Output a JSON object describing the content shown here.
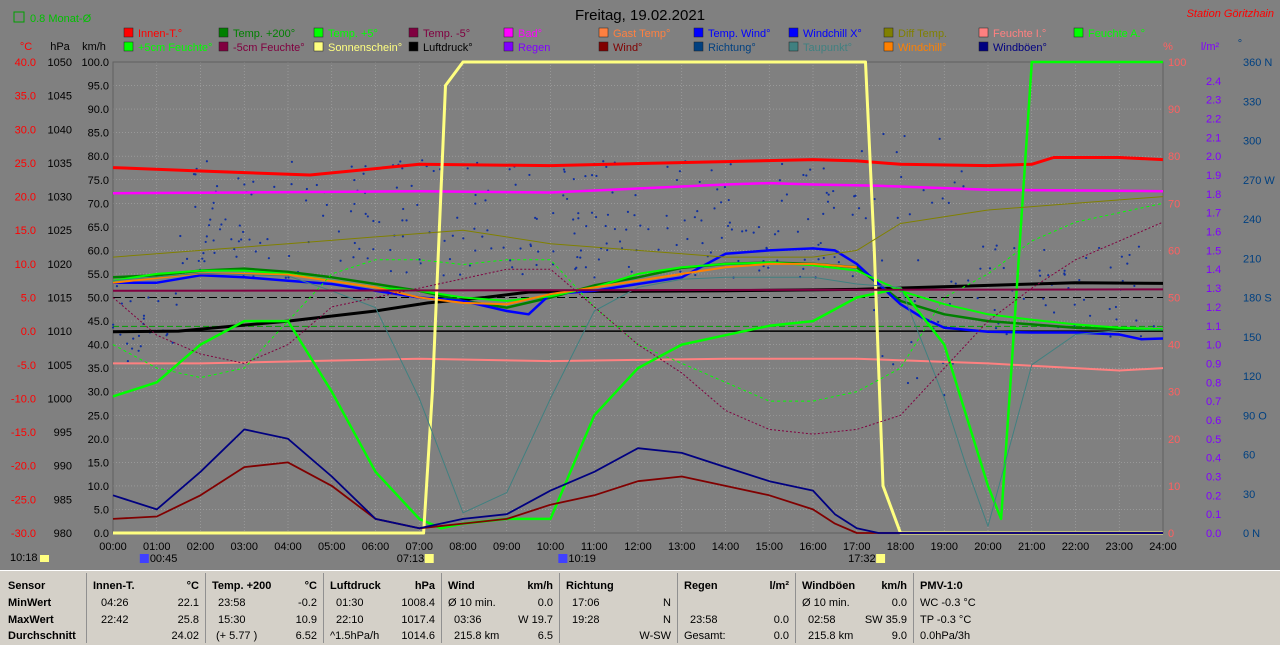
{
  "title": "Freitag, 19.02.2021",
  "station": "Station Göritzhain",
  "monat_label": "0.8 Monat-Ø",
  "axes": {
    "celsius_unit": "°C",
    "hpa_unit": "hPa",
    "kmh_unit": "km/h",
    "percent_unit": "%",
    "lm2_unit": "l/m²",
    "deg_unit": "°",
    "celsius_ticks": [
      "40.0",
      "35.0",
      "30.0",
      "25.0",
      "20.0",
      "15.0",
      "10.0",
      "5.0",
      "0.0",
      "-5.0",
      "-10.0",
      "-15.0",
      "-20.0",
      "-25.0",
      "-30.0"
    ],
    "hpa_ticks": [
      "1050",
      "1045",
      "1040",
      "1035",
      "1030",
      "1025",
      "1020",
      "1015",
      "1010",
      "1005",
      "1000",
      "995",
      "990",
      "985",
      "980"
    ],
    "kmh_ticks": [
      "100.0",
      "95.0",
      "90.0",
      "85.0",
      "80.0",
      "75.0",
      "70.0",
      "65.0",
      "60.0",
      "55.0",
      "50.0",
      "45.0",
      "40.0",
      "35.0",
      "30.0",
      "25.0",
      "20.0",
      "15.0",
      "10.0",
      "5.0",
      "0.0"
    ],
    "percent_ticks": [
      "100",
      "90",
      "80",
      "70",
      "60",
      "50",
      "40",
      "30",
      "20",
      "10",
      "0"
    ],
    "lm2_ticks": [
      "2.4",
      "2.3",
      "2.2",
      "2.1",
      "2.0",
      "1.9",
      "1.8",
      "1.7",
      "1.6",
      "1.5",
      "1.4",
      "1.3",
      "1.2",
      "1.1",
      "1.0",
      "0.9",
      "0.8",
      "0.7",
      "0.6",
      "0.5",
      "0.4",
      "0.3",
      "0.2",
      "0.1",
      "0.0"
    ],
    "deg_ticks": [
      "360 N",
      "330",
      "300",
      "270 W",
      "240",
      "210",
      "180 S",
      "150",
      "120",
      "90 O",
      "60",
      "30",
      "0 N"
    ],
    "time_ticks": [
      "00:00",
      "01:00",
      "02:00",
      "03:00",
      "04:00",
      "05:00",
      "06:00",
      "07:00",
      "08:00",
      "09:00",
      "10:00",
      "11:00",
      "12:00",
      "13:00",
      "14:00",
      "15:00",
      "16:00",
      "17:00",
      "18:00",
      "19:00",
      "20:00",
      "21:00",
      "22:00",
      "23:00",
      "24:00"
    ]
  },
  "markers": {
    "left_time": "10:18",
    "moonrise": "00:45",
    "sunrise": "07:13",
    "moonset": "10:19",
    "sunset": "17:32"
  },
  "legend": [
    {
      "label": "Innen-T.°",
      "color": "#ff0000"
    },
    {
      "label": "Temp. +200°",
      "color": "#008000"
    },
    {
      "label": "Temp. +5°",
      "color": "#00ff00"
    },
    {
      "label": "Temp. -5°",
      "color": "#800040"
    },
    {
      "label": "Bad°",
      "color": "#ff00ff"
    },
    {
      "label": "Gast Temp°",
      "color": "#ff8040"
    },
    {
      "label": "Temp. Wind°",
      "color": "#0000ff"
    },
    {
      "label": "Windchill X°",
      "color": "#0000ff"
    },
    {
      "label": "Diff Temp.",
      "color": "#808000"
    },
    {
      "label": "Feuchte I.°",
      "color": "#ff8080"
    },
    {
      "label": "Feuchte A.°",
      "color": "#00ff00"
    },
    {
      "label": "+5cm Feuchte°",
      "color": "#00ff00"
    },
    {
      "label": "-5cm Feuchte°",
      "color": "#800040"
    },
    {
      "label": "Sonnenschein°",
      "color": "#ffff80"
    },
    {
      "label": "Luftdruck°",
      "color": "#000000"
    },
    {
      "label": "Regen",
      "color": "#8000ff"
    },
    {
      "label": "Wind°",
      "color": "#800000"
    },
    {
      "label": "Richtung°",
      "color": "#004080"
    },
    {
      "label": "Taupunkt°",
      "color": "#408080"
    },
    {
      "label": "Windchill°",
      "color": "#ff8000"
    },
    {
      "label": "Windböen°",
      "color": "#000080"
    }
  ],
  "chart_data": {
    "type": "line",
    "x_unit": "h",
    "xlim": [
      0,
      24
    ],
    "ylim_kmh": [
      0,
      100
    ],
    "series": [
      {
        "name": "Innen-T.°",
        "axis": "celsius",
        "color": "#ff0000",
        "x": [
          0,
          2,
          4.5,
          7,
          10,
          14,
          16,
          17,
          18,
          20,
          21,
          21.5,
          23,
          24
        ],
        "y": [
          24.3,
          23.8,
          23.2,
          24.8,
          24.6,
          25.2,
          25.5,
          25.3,
          24.8,
          24.6,
          24.8,
          25.8,
          25.8,
          25.5
        ]
      },
      {
        "name": "Bad°",
        "axis": "celsius",
        "color": "#ff00ff",
        "x": [
          0,
          3,
          7,
          10,
          12,
          14,
          15,
          16,
          17.5,
          20,
          24
        ],
        "y": [
          20.5,
          20.6,
          20.8,
          20.6,
          21.2,
          21.8,
          22,
          21.8,
          21.6,
          21.0,
          20.8
        ]
      },
      {
        "name": "Luftdruck°",
        "axis": "hpa",
        "color": "#000000",
        "x": [
          0,
          1.5,
          4,
          6,
          7.2,
          8.5,
          9.5,
          11,
          14,
          17,
          20,
          22,
          24
        ],
        "y": [
          1009.9,
          1010,
          1011.5,
          1013,
          1014.2,
          1015,
          1015.8,
          1015.9,
          1016,
          1016.2,
          1016.8,
          1017.2,
          1017.1
        ]
      },
      {
        "name": "Feuchte I.°",
        "axis": "percent",
        "color": "#ff8080",
        "x": [
          0,
          2,
          7,
          10,
          14,
          17,
          20,
          22,
          23,
          24
        ],
        "y": [
          36,
          36,
          37,
          36.5,
          37,
          37,
          36,
          35,
          34.5,
          35
        ]
      },
      {
        "name": "Temp. +200°",
        "axis": "celsius",
        "color": "#008000",
        "x": [
          0,
          1,
          2,
          3,
          4,
          5,
          6,
          7,
          8,
          9,
          10,
          11,
          12,
          13,
          14,
          15,
          16,
          17,
          17.5,
          18,
          19,
          20,
          21,
          22,
          23,
          24
        ],
        "y": [
          8.0,
          8.3,
          9.0,
          9.3,
          8.8,
          8.0,
          7.0,
          6.0,
          4.5,
          3.5,
          5.0,
          6.8,
          8.0,
          9.4,
          10.0,
          10.2,
          10.0,
          9.5,
          7.0,
          4.5,
          2.5,
          1.5,
          1.0,
          0.5,
          0.3,
          0.2
        ]
      },
      {
        "name": "Temp. Wind°",
        "axis": "celsius",
        "color": "#0000ff",
        "x": [
          0,
          1,
          2,
          3,
          4,
          5,
          6,
          7,
          8,
          9,
          9.5,
          10,
          11,
          12,
          13,
          14,
          15,
          16,
          16.5,
          17,
          17.5,
          18,
          18.5,
          19,
          20,
          21,
          22,
          23,
          23.5,
          24
        ],
        "y": [
          7.2,
          7.2,
          8.3,
          8.0,
          7.5,
          7.0,
          6.0,
          5.0,
          4.5,
          3.0,
          2.5,
          5.5,
          6.0,
          7.0,
          8.0,
          11.5,
          12.0,
          12.3,
          12.0,
          10.0,
          7.0,
          4.0,
          2.0,
          0.5,
          -0.1,
          -0.2,
          -0.2,
          -0.5,
          -1.2,
          -1.1
        ]
      },
      {
        "name": "Temp. +5°",
        "axis": "celsius",
        "color": "#00ff00",
        "x": [
          0,
          1,
          2,
          3,
          4,
          5,
          6,
          7,
          8,
          9,
          10,
          11,
          12,
          13,
          14,
          15,
          16,
          17,
          18,
          19,
          20,
          21,
          22,
          23,
          24
        ],
        "y": [
          7.5,
          8.5,
          9.0,
          9.0,
          8.5,
          7.5,
          6.5,
          6.0,
          5.0,
          4.5,
          5.2,
          6.5,
          8.5,
          9.5,
          10.0,
          10.2,
          9.8,
          9.0,
          6.0,
          4.0,
          2.5,
          1.7,
          1.0,
          0.5,
          0.3
        ]
      },
      {
        "name": "Windchill°",
        "axis": "celsius",
        "color": "#ff8000",
        "x": [
          0,
          2,
          4,
          6,
          7,
          8,
          9,
          10,
          11,
          12,
          13,
          14,
          15,
          16,
          17
        ],
        "y": [
          7.2,
          8.6,
          8.4,
          6.5,
          5.0,
          4.2,
          4.0,
          5.5,
          6.5,
          7.5,
          8.5,
          9.5,
          10.0,
          10.0,
          9.5
        ]
      },
      {
        "name": "Feuchte A.°",
        "axis": "percent",
        "color": "#00ff00",
        "x": [
          0,
          1,
          2,
          3,
          4,
          5,
          6,
          7,
          7.5,
          8,
          9,
          10,
          11,
          12,
          13,
          14,
          15,
          16,
          17,
          18,
          19,
          20,
          20.3,
          20.5,
          21,
          21.5,
          22,
          23,
          24
        ],
        "y": [
          29,
          32,
          40,
          45,
          45,
          30,
          13,
          3,
          1,
          2,
          3,
          3,
          25,
          35,
          40,
          42,
          44,
          45,
          50,
          52,
          40,
          10,
          3,
          30,
          100,
          100,
          100,
          100,
          100
        ]
      },
      {
        "name": "Sonnenschein°",
        "axis": "percent",
        "color": "#ffff80",
        "x": [
          0,
          7.1,
          7.3,
          7.6,
          8,
          17.2,
          17.4,
          17.6,
          18,
          24
        ],
        "y": [
          0,
          0,
          30,
          95,
          100,
          100,
          60,
          10,
          0,
          0
        ]
      },
      {
        "name": "Wind°",
        "axis": "kmh",
        "color": "#800000",
        "x": [
          0,
          1,
          2,
          3,
          4,
          5,
          6,
          7,
          8,
          9,
          10,
          11,
          12,
          13,
          14,
          15,
          16,
          16.5,
          17,
          17.5,
          18,
          24
        ],
        "y": [
          3,
          3.5,
          8,
          14,
          15,
          10,
          3,
          1,
          2,
          3,
          6,
          8,
          11,
          12,
          10,
          8,
          5,
          2,
          0,
          0,
          0,
          0
        ]
      },
      {
        "name": "Windböen°",
        "axis": "kmh",
        "color": "#000080",
        "x": [
          0,
          1,
          2,
          3,
          4,
          5,
          6,
          7,
          8,
          9,
          10,
          11,
          12,
          13,
          14,
          15,
          16,
          16.5,
          17,
          17.5,
          18,
          19,
          20,
          21,
          22,
          23,
          24
        ],
        "y": [
          8,
          5,
          13,
          22,
          20,
          12,
          3,
          1,
          3,
          4,
          9,
          13,
          18,
          17,
          14,
          11,
          9,
          4,
          1,
          0,
          0,
          0,
          0,
          0,
          0,
          0,
          0
        ]
      },
      {
        "name": "Taupunkt°",
        "axis": "celsius",
        "color": "#408080",
        "x": [
          0,
          2,
          4,
          5,
          6,
          7,
          8,
          9,
          10,
          11,
          12,
          13,
          14,
          15,
          16,
          17,
          18,
          19,
          19.5,
          20,
          21,
          22,
          23,
          24
        ],
        "y": [
          7.5,
          8.6,
          8.2,
          6.0,
          3.5,
          -10,
          -27,
          -24,
          -10,
          3.0,
          6.5,
          7.7,
          8.0,
          8.0,
          8.0,
          7.0,
          6.5,
          -10,
          -20,
          -29,
          -5,
          -0.5,
          0.1,
          0.2
        ]
      },
      {
        "name": "Diff Temp.",
        "axis": "celsius",
        "color": "#808000",
        "x": [
          0,
          2,
          4,
          6,
          8,
          10,
          12,
          14,
          16,
          17,
          18,
          20,
          22,
          24
        ],
        "y": [
          11,
          12,
          13,
          14,
          15,
          13,
          12,
          11,
          11,
          12,
          16,
          18,
          19,
          20
        ]
      },
      {
        "name": "+5cm Feuchte°",
        "axis": "percent",
        "color": "#00ff00",
        "x": [
          0,
          1,
          2,
          3,
          4,
          5,
          6,
          7,
          8,
          9,
          10,
          11,
          12,
          13,
          14,
          15,
          16,
          17,
          18,
          19,
          20,
          21,
          22,
          23,
          24
        ],
        "y": [
          40,
          35,
          33,
          35,
          45,
          55,
          58,
          58,
          57,
          58,
          58,
          48,
          40,
          36,
          32,
          28,
          28,
          30,
          35,
          50,
          55,
          62,
          66,
          68,
          70
        ]
      },
      {
        "name": "-5cm Feuchte°",
        "axis": "percent",
        "color": "#800040",
        "x": [
          0,
          1,
          2,
          3,
          4,
          5,
          6,
          7,
          8,
          9,
          10,
          11,
          12,
          13,
          14,
          15,
          16,
          17,
          18,
          19,
          20,
          21,
          22,
          23,
          24
        ],
        "y": [
          50,
          42,
          38,
          36,
          40,
          48,
          50,
          52,
          54,
          56,
          56,
          48,
          40,
          34,
          26,
          22,
          21,
          22,
          25,
          35,
          45,
          52,
          58,
          62,
          66
        ]
      },
      {
        "name": "Temp. -5°",
        "axis": "celsius",
        "color": "#800040",
        "x": [
          0,
          24
        ],
        "y": [
          6.0,
          6.2
        ]
      },
      {
        "name": "Windchill X°",
        "axis": "celsius",
        "color": "#0000ff",
        "x": [
          0,
          24
        ],
        "y": [
          0,
          0
        ]
      }
    ]
  },
  "table": {
    "headers": {
      "sensor": "Sensor",
      "innen": "Innen-T.",
      "innen_unit": "°C",
      "temp": "Temp. +200",
      "temp_unit": "°C",
      "luft": "Luftdruck",
      "luft_unit": "hPa",
      "wind": "Wind",
      "wind_unit": "km/h",
      "richtung": "Richtung",
      "regen": "Regen",
      "regen_unit": "l/m²",
      "boen": "Windböen",
      "boen_unit": "km/h",
      "pmv": "PMV-1:0"
    },
    "rows": {
      "min": "MinWert",
      "max": "MaxWert",
      "avg": "Durchschnitt"
    },
    "innen": {
      "min_t": "04:26",
      "min_v": "22.1",
      "max_t": "22:42",
      "max_v": "25.8",
      "avg_v": "24.02"
    },
    "temp": {
      "min_t": "23:58",
      "min_v": "-0.2",
      "max_t": "15:30",
      "max_v": "10.9",
      "avg_t": "(+ 5.77 )",
      "avg_v": "6.52"
    },
    "luft": {
      "min_t": "01:30",
      "min_v": "1008.4",
      "max_t": "22:10",
      "max_v": "1017.4",
      "avg_t": "^1.5hPa/h",
      "avg_v": "1014.6"
    },
    "wind": {
      "min_t": "Ø 10 min.",
      "min_v": "0.0",
      "max_t": "03:36",
      "max_v": "W 19.7",
      "avg_t": "215.8 km",
      "avg_v": "6.5"
    },
    "richtung": {
      "min_t": "17:06",
      "min_v": "N",
      "max_t": "19:28",
      "max_v": "N",
      "avg_v": "W-SW"
    },
    "regen": {
      "max_t": "23:58",
      "max_v": "0.0",
      "avg_t": "Gesamt:",
      "avg_v": "0.0"
    },
    "boen": {
      "min_t": "Ø 10 min.",
      "min_v": "0.0",
      "max_t": "02:58",
      "max_v": "SW 35.9",
      "avg_t": "215.8 km",
      "avg_v": "9.0"
    },
    "pmv": {
      "min_v": "WC -0.3 °C",
      "max_v": "TP -0.3 °C",
      "avg_v": "0.0hPa/3h"
    }
  }
}
